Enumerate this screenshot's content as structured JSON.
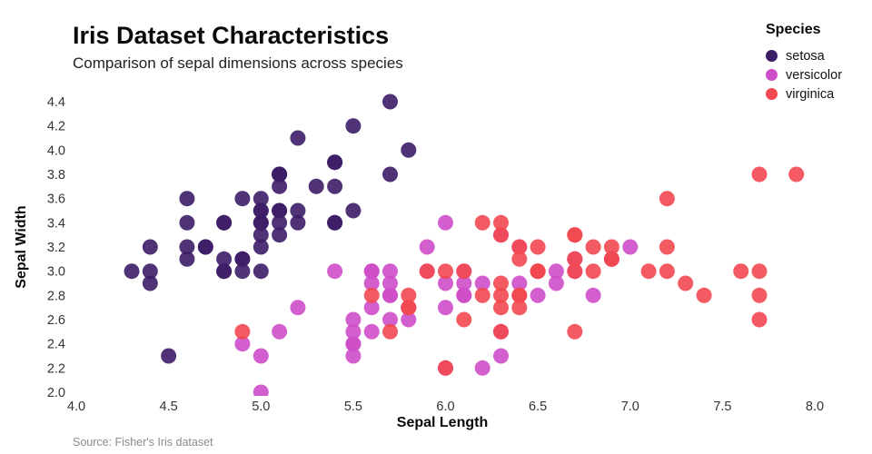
{
  "header": {
    "title": "Iris Dataset Characteristics",
    "subtitle": "Comparison of sepal dimensions across species"
  },
  "legend": {
    "title": "Species",
    "items": [
      {
        "label": "setosa",
        "color": "#3c1d67"
      },
      {
        "label": "versicolor",
        "color": "#ce4ec9"
      },
      {
        "label": "virginica",
        "color": "#f24850"
      }
    ]
  },
  "source": "Source: Fisher's Iris dataset",
  "chart_data": {
    "type": "scatter",
    "title": "Iris Dataset Characteristics",
    "subtitle": "Comparison of sepal dimensions across species",
    "xlabel": "Sepal Length",
    "ylabel": "Sepal Width",
    "xlim": [
      4.0,
      8.0
    ],
    "ylim": [
      2.0,
      4.4
    ],
    "x_ticks": [
      4.0,
      4.5,
      5.0,
      5.5,
      6.0,
      6.5,
      7.0,
      7.5,
      8.0
    ],
    "y_ticks": [
      2.0,
      2.2,
      2.4,
      2.6,
      2.8,
      3.0,
      3.2,
      3.4,
      3.6,
      3.8,
      4.0,
      4.2,
      4.4
    ],
    "grid": false,
    "legend_position": "top-right",
    "marker_radius": 8.5,
    "series": [
      {
        "name": "setosa",
        "color": "#3c1d67",
        "points": [
          [
            5.1,
            3.5
          ],
          [
            4.9,
            3.0
          ],
          [
            4.7,
            3.2
          ],
          [
            4.6,
            3.1
          ],
          [
            5.0,
            3.6
          ],
          [
            5.4,
            3.9
          ],
          [
            4.6,
            3.4
          ],
          [
            5.0,
            3.4
          ],
          [
            4.4,
            2.9
          ],
          [
            4.9,
            3.1
          ],
          [
            5.4,
            3.7
          ],
          [
            4.8,
            3.4
          ],
          [
            4.8,
            3.0
          ],
          [
            4.3,
            3.0
          ],
          [
            5.8,
            4.0
          ],
          [
            5.7,
            4.4
          ],
          [
            5.4,
            3.9
          ],
          [
            5.1,
            3.5
          ],
          [
            5.7,
            3.8
          ],
          [
            5.1,
            3.8
          ],
          [
            5.4,
            3.4
          ],
          [
            5.1,
            3.7
          ],
          [
            4.6,
            3.6
          ],
          [
            5.1,
            3.3
          ],
          [
            4.8,
            3.4
          ],
          [
            5.0,
            3.0
          ],
          [
            5.0,
            3.4
          ],
          [
            5.2,
            3.5
          ],
          [
            5.2,
            3.4
          ],
          [
            4.7,
            3.2
          ],
          [
            4.8,
            3.1
          ],
          [
            5.4,
            3.4
          ],
          [
            5.2,
            4.1
          ],
          [
            5.5,
            4.2
          ],
          [
            4.9,
            3.1
          ],
          [
            5.0,
            3.2
          ],
          [
            5.5,
            3.5
          ],
          [
            4.9,
            3.6
          ],
          [
            4.4,
            3.0
          ],
          [
            5.1,
            3.4
          ],
          [
            5.0,
            3.5
          ],
          [
            4.5,
            2.3
          ],
          [
            4.4,
            3.2
          ],
          [
            5.0,
            3.5
          ],
          [
            5.1,
            3.8
          ],
          [
            4.8,
            3.0
          ],
          [
            5.1,
            3.8
          ],
          [
            4.6,
            3.2
          ],
          [
            5.3,
            3.7
          ],
          [
            5.0,
            3.3
          ]
        ]
      },
      {
        "name": "versicolor",
        "color": "#ce4ec9",
        "points": [
          [
            7.0,
            3.2
          ],
          [
            6.4,
            3.2
          ],
          [
            6.9,
            3.1
          ],
          [
            5.5,
            2.3
          ],
          [
            6.5,
            2.8
          ],
          [
            5.7,
            2.8
          ],
          [
            6.3,
            3.3
          ],
          [
            4.9,
            2.4
          ],
          [
            6.6,
            2.9
          ],
          [
            5.2,
            2.7
          ],
          [
            5.0,
            2.0
          ],
          [
            5.9,
            3.0
          ],
          [
            6.0,
            2.2
          ],
          [
            6.1,
            2.9
          ],
          [
            5.6,
            2.9
          ],
          [
            6.7,
            3.1
          ],
          [
            5.6,
            3.0
          ],
          [
            5.8,
            2.7
          ],
          [
            6.2,
            2.2
          ],
          [
            5.6,
            2.5
          ],
          [
            5.9,
            3.2
          ],
          [
            6.1,
            2.8
          ],
          [
            6.3,
            2.5
          ],
          [
            6.1,
            2.8
          ],
          [
            6.4,
            2.9
          ],
          [
            6.6,
            3.0
          ],
          [
            6.8,
            2.8
          ],
          [
            6.7,
            3.0
          ],
          [
            6.0,
            2.9
          ],
          [
            5.7,
            2.6
          ],
          [
            5.5,
            2.4
          ],
          [
            5.5,
            2.4
          ],
          [
            5.8,
            2.7
          ],
          [
            6.0,
            2.7
          ],
          [
            5.4,
            3.0
          ],
          [
            6.0,
            3.4
          ],
          [
            6.7,
            3.1
          ],
          [
            6.3,
            2.3
          ],
          [
            5.6,
            3.0
          ],
          [
            5.5,
            2.5
          ],
          [
            5.5,
            2.6
          ],
          [
            6.1,
            3.0
          ],
          [
            5.8,
            2.6
          ],
          [
            5.0,
            2.3
          ],
          [
            5.6,
            2.7
          ],
          [
            5.7,
            3.0
          ],
          [
            5.7,
            2.9
          ],
          [
            6.2,
            2.9
          ],
          [
            5.1,
            2.5
          ],
          [
            5.7,
            2.8
          ]
        ]
      },
      {
        "name": "virginica",
        "color": "#f24850",
        "points": [
          [
            6.3,
            3.3
          ],
          [
            5.8,
            2.7
          ],
          [
            7.1,
            3.0
          ],
          [
            6.3,
            2.9
          ],
          [
            6.5,
            3.0
          ],
          [
            7.6,
            3.0
          ],
          [
            4.9,
            2.5
          ],
          [
            7.3,
            2.9
          ],
          [
            6.7,
            2.5
          ],
          [
            7.2,
            3.6
          ],
          [
            6.5,
            3.2
          ],
          [
            6.4,
            2.7
          ],
          [
            6.8,
            3.0
          ],
          [
            5.7,
            2.5
          ],
          [
            5.8,
            2.8
          ],
          [
            6.4,
            3.2
          ],
          [
            6.5,
            3.0
          ],
          [
            7.7,
            3.8
          ],
          [
            7.7,
            2.6
          ],
          [
            6.0,
            2.2
          ],
          [
            6.9,
            3.2
          ],
          [
            5.6,
            2.8
          ],
          [
            7.7,
            2.8
          ],
          [
            6.3,
            2.7
          ],
          [
            6.7,
            3.3
          ],
          [
            7.2,
            3.2
          ],
          [
            6.2,
            2.8
          ],
          [
            6.1,
            3.0
          ],
          [
            6.4,
            2.8
          ],
          [
            7.2,
            3.0
          ],
          [
            7.4,
            2.8
          ],
          [
            7.9,
            3.8
          ],
          [
            6.4,
            2.8
          ],
          [
            6.3,
            2.8
          ],
          [
            6.1,
            2.6
          ],
          [
            7.7,
            3.0
          ],
          [
            6.3,
            3.4
          ],
          [
            6.4,
            3.1
          ],
          [
            6.0,
            3.0
          ],
          [
            6.9,
            3.1
          ],
          [
            6.7,
            3.1
          ],
          [
            6.9,
            3.1
          ],
          [
            5.8,
            2.7
          ],
          [
            6.8,
            3.2
          ],
          [
            6.7,
            3.3
          ],
          [
            6.7,
            3.0
          ],
          [
            6.3,
            2.5
          ],
          [
            6.5,
            3.0
          ],
          [
            6.2,
            3.4
          ],
          [
            5.9,
            3.0
          ]
        ]
      }
    ]
  }
}
